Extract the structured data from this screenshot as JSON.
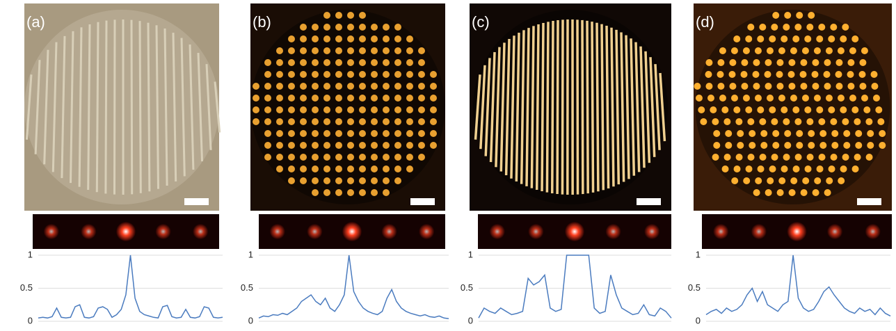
{
  "panels": [
    {
      "label": "(a)"
    },
    {
      "label": "(b)"
    },
    {
      "label": "(c)"
    },
    {
      "label": "(d)"
    }
  ],
  "chart_data": [
    {
      "type": "line",
      "color": "#4a7bbf",
      "ylim": [
        0,
        1
      ],
      "yticks": [
        0,
        0.5,
        1
      ],
      "grid": true,
      "values": [
        0.05,
        0.06,
        0.05,
        0.07,
        0.2,
        0.06,
        0.05,
        0.06,
        0.22,
        0.25,
        0.06,
        0.05,
        0.07,
        0.2,
        0.22,
        0.18,
        0.06,
        0.1,
        0.18,
        0.4,
        1.0,
        0.35,
        0.15,
        0.1,
        0.08,
        0.06,
        0.05,
        0.22,
        0.24,
        0.07,
        0.05,
        0.06,
        0.18,
        0.06,
        0.05,
        0.07,
        0.22,
        0.2,
        0.06,
        0.05,
        0.06
      ]
    },
    {
      "type": "line",
      "color": "#4a7bbf",
      "ylim": [
        0,
        1
      ],
      "yticks": [
        0,
        0.5,
        1
      ],
      "grid": true,
      "values": [
        0.05,
        0.08,
        0.07,
        0.1,
        0.09,
        0.12,
        0.1,
        0.15,
        0.2,
        0.3,
        0.35,
        0.4,
        0.3,
        0.25,
        0.35,
        0.2,
        0.15,
        0.25,
        0.4,
        1.0,
        0.45,
        0.3,
        0.2,
        0.15,
        0.12,
        0.1,
        0.15,
        0.35,
        0.48,
        0.3,
        0.2,
        0.15,
        0.12,
        0.1,
        0.08,
        0.1,
        0.07,
        0.06,
        0.08,
        0.05,
        0.04
      ]
    },
    {
      "type": "line",
      "color": "#4a7bbf",
      "ylim": [
        0,
        1
      ],
      "yticks": [
        0,
        0.5,
        1
      ],
      "grid": true,
      "values": [
        0.05,
        0.2,
        0.15,
        0.12,
        0.2,
        0.15,
        0.1,
        0.12,
        0.15,
        0.65,
        0.55,
        0.6,
        0.7,
        0.2,
        0.15,
        0.18,
        1,
        1,
        1,
        1,
        1,
        0.2,
        0.12,
        0.15,
        0.7,
        0.4,
        0.2,
        0.15,
        0.1,
        0.12,
        0.25,
        0.1,
        0.08,
        0.2,
        0.15,
        0.05
      ]
    },
    {
      "type": "line",
      "color": "#4a7bbf",
      "ylim": [
        0,
        1
      ],
      "yticks": [
        0,
        0.5,
        1
      ],
      "grid": true,
      "values": [
        0.1,
        0.15,
        0.18,
        0.12,
        0.2,
        0.15,
        0.18,
        0.25,
        0.4,
        0.5,
        0.3,
        0.45,
        0.25,
        0.2,
        0.15,
        0.25,
        0.3,
        1.0,
        0.35,
        0.2,
        0.15,
        0.18,
        0.3,
        0.45,
        0.52,
        0.4,
        0.3,
        0.2,
        0.15,
        0.12,
        0.2,
        0.15,
        0.18,
        0.1,
        0.2,
        0.12,
        0.08
      ]
    }
  ]
}
